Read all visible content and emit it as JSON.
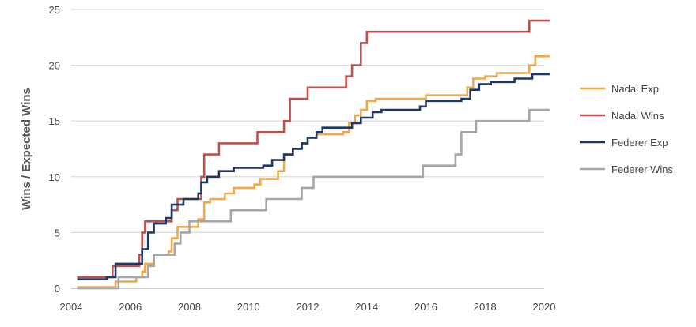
{
  "chart_data": {
    "type": "line",
    "title": "",
    "xlabel": "",
    "ylabel": "Wins / Expected Wins",
    "xlim": [
      2004,
      2020
    ],
    "ylim": [
      0,
      25
    ],
    "x_ticks": [
      "2004",
      "2006",
      "2008",
      "2010",
      "2012",
      "2014",
      "2016",
      "2018",
      "2020"
    ],
    "y_ticks": [
      "0",
      "5",
      "10",
      "15",
      "20",
      "25"
    ],
    "grid": "horizontal",
    "legend_position": "right",
    "step": true,
    "series": [
      {
        "name": "Nadal Exp",
        "color": "#f0a848",
        "points": [
          [
            2004.2,
            0.1
          ],
          [
            2005.5,
            0.6
          ],
          [
            2006.2,
            1.0
          ],
          [
            2006.4,
            1.5
          ],
          [
            2006.5,
            2.2
          ],
          [
            2006.8,
            3.0
          ],
          [
            2007.3,
            3.3
          ],
          [
            2007.4,
            4.5
          ],
          [
            2007.6,
            5.5
          ],
          [
            2008.3,
            6.2
          ],
          [
            2008.5,
            7.7
          ],
          [
            2008.7,
            8.0
          ],
          [
            2009.2,
            8.5
          ],
          [
            2009.5,
            9.0
          ],
          [
            2010.2,
            9.3
          ],
          [
            2010.4,
            9.8
          ],
          [
            2011.0,
            10.5
          ],
          [
            2011.2,
            12.0
          ],
          [
            2011.5,
            12.5
          ],
          [
            2011.8,
            13.0
          ],
          [
            2012.0,
            13.5
          ],
          [
            2012.3,
            13.8
          ],
          [
            2013.2,
            14.0
          ],
          [
            2013.4,
            14.8
          ],
          [
            2013.6,
            15.5
          ],
          [
            2013.8,
            16.0
          ],
          [
            2014.0,
            16.8
          ],
          [
            2014.3,
            17.0
          ],
          [
            2015.5,
            17.0
          ],
          [
            2016.0,
            17.3
          ],
          [
            2017.0,
            17.3
          ],
          [
            2017.4,
            18.0
          ],
          [
            2017.6,
            18.8
          ],
          [
            2018.0,
            19.0
          ],
          [
            2018.4,
            19.3
          ],
          [
            2019.5,
            20.0
          ],
          [
            2019.7,
            20.8
          ],
          [
            2020.2,
            20.8
          ]
        ]
      },
      {
        "name": "Nadal Wins",
        "color": "#c0504d",
        "points": [
          [
            2004.2,
            1.0
          ],
          [
            2005.3,
            1.0
          ],
          [
            2005.4,
            2.0
          ],
          [
            2006.3,
            3.0
          ],
          [
            2006.4,
            5.0
          ],
          [
            2006.5,
            6.0
          ],
          [
            2007.2,
            6.0
          ],
          [
            2007.4,
            7.0
          ],
          [
            2007.6,
            8.0
          ],
          [
            2008.2,
            8.0
          ],
          [
            2008.4,
            10.0
          ],
          [
            2008.5,
            12.0
          ],
          [
            2009.0,
            13.0
          ],
          [
            2010.3,
            14.0
          ],
          [
            2011.2,
            15.0
          ],
          [
            2011.4,
            17.0
          ],
          [
            2012.0,
            18.0
          ],
          [
            2013.3,
            19.0
          ],
          [
            2013.5,
            20.0
          ],
          [
            2013.8,
            22.0
          ],
          [
            2014.0,
            23.0
          ],
          [
            2019.4,
            23.0
          ],
          [
            2019.5,
            24.0
          ],
          [
            2020.2,
            24.0
          ]
        ]
      },
      {
        "name": "Federer Exp",
        "color": "#1f3864",
        "points": [
          [
            2004.2,
            0.8
          ],
          [
            2005.2,
            1.0
          ],
          [
            2005.5,
            2.2
          ],
          [
            2006.2,
            2.2
          ],
          [
            2006.4,
            3.5
          ],
          [
            2006.6,
            5.0
          ],
          [
            2006.8,
            5.8
          ],
          [
            2007.2,
            6.3
          ],
          [
            2007.4,
            7.5
          ],
          [
            2007.8,
            8.0
          ],
          [
            2008.3,
            8.5
          ],
          [
            2008.4,
            9.5
          ],
          [
            2008.6,
            10.0
          ],
          [
            2009.0,
            10.5
          ],
          [
            2009.5,
            10.8
          ],
          [
            2010.5,
            11.0
          ],
          [
            2010.8,
            11.5
          ],
          [
            2011.2,
            12.0
          ],
          [
            2011.5,
            12.5
          ],
          [
            2011.8,
            13.0
          ],
          [
            2012.0,
            13.5
          ],
          [
            2012.3,
            14.0
          ],
          [
            2012.5,
            14.4
          ],
          [
            2013.5,
            14.8
          ],
          [
            2013.8,
            15.3
          ],
          [
            2014.2,
            15.8
          ],
          [
            2014.5,
            16.0
          ],
          [
            2015.8,
            16.3
          ],
          [
            2016.0,
            16.8
          ],
          [
            2017.2,
            17.0
          ],
          [
            2017.5,
            17.8
          ],
          [
            2017.8,
            18.3
          ],
          [
            2018.2,
            18.5
          ],
          [
            2019.0,
            18.8
          ],
          [
            2019.6,
            19.2
          ],
          [
            2020.2,
            19.2
          ]
        ]
      },
      {
        "name": "Federer Wins",
        "color": "#a6a6a6",
        "points": [
          [
            2004.2,
            0.0
          ],
          [
            2005.5,
            0.0
          ],
          [
            2005.6,
            1.0
          ],
          [
            2006.5,
            1.0
          ],
          [
            2006.6,
            2.0
          ],
          [
            2006.8,
            3.0
          ],
          [
            2007.5,
            4.0
          ],
          [
            2007.7,
            5.0
          ],
          [
            2008.0,
            6.0
          ],
          [
            2009.2,
            6.0
          ],
          [
            2009.4,
            7.0
          ],
          [
            2010.6,
            8.0
          ],
          [
            2011.8,
            9.0
          ],
          [
            2012.2,
            10.0
          ],
          [
            2015.8,
            10.0
          ],
          [
            2015.9,
            11.0
          ],
          [
            2017.0,
            12.0
          ],
          [
            2017.2,
            14.0
          ],
          [
            2017.7,
            15.0
          ],
          [
            2019.5,
            16.0
          ],
          [
            2020.2,
            16.0
          ]
        ]
      }
    ]
  }
}
